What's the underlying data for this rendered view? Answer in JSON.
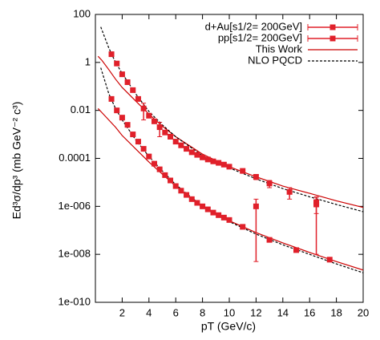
{
  "chart_data": {
    "type": "scatter",
    "xlabel": "pT (GeV/c)",
    "ylabel": "Ed³σ/dp³ (mb GeV⁻² c³)",
    "xlim": [
      0,
      20
    ],
    "ylim": [
      1e-10,
      100
    ],
    "log_y": true,
    "xticks": [
      2,
      4,
      6,
      8,
      10,
      12,
      14,
      16,
      18,
      20
    ],
    "yticks": [
      {
        "value": 1e-10,
        "label": "1e-010"
      },
      {
        "value": 1e-08,
        "label": "1e-008"
      },
      {
        "value": 1e-06,
        "label": "1e-006"
      },
      0.0001,
      0.01,
      1,
      100
    ],
    "legend": "upper right",
    "series": [
      {
        "name": "d+Au[s1/2= 200GeV]",
        "color": "#e0202a",
        "x": [
          1.2,
          1.6,
          2.0,
          2.4,
          2.8,
          3.2,
          3.6,
          4.0,
          4.4,
          4.8,
          5.2,
          5.6,
          6.0,
          6.4,
          6.8,
          7.2,
          7.6,
          8.0,
          8.4,
          8.8,
          9.2,
          9.6,
          10.0,
          11,
          12,
          13,
          14.5,
          16.5
        ],
        "values": [
          2.2,
          0.9,
          0.32,
          0.15,
          0.07,
          0.03,
          0.012,
          0.006,
          0.0035,
          0.002,
          0.0012,
          0.0008,
          0.0005,
          0.00035,
          0.00025,
          0.00018,
          0.00014,
          0.00011,
          9e-05,
          7.5e-05,
          6.5e-05,
          5.5e-05,
          4.5e-05,
          3e-05,
          1.7e-05,
          9e-06,
          4e-06,
          1.5e-06
        ],
        "errors": [
          0.3,
          0.1,
          0.04,
          0.02,
          0.01,
          0.005,
          0.008,
          0.001,
          0.0006,
          0.0012,
          0.0002,
          0.0001,
          0.0001,
          5e-05,
          4e-05,
          3e-05,
          2e-05,
          2e-05,
          1e-05,
          1e-05,
          1e-05,
          1e-05,
          8e-06,
          6e-06,
          4e-06,
          3e-06,
          2e-06,
          1e-06
        ]
      },
      {
        "name": "pp[s1/2= 200GeV]",
        "color": "#e0202a",
        "x": [
          1.2,
          1.6,
          2.0,
          2.4,
          2.8,
          3.2,
          3.6,
          4.0,
          4.4,
          4.8,
          5.2,
          5.6,
          6.0,
          6.4,
          6.8,
          7.2,
          7.6,
          8.0,
          8.4,
          8.8,
          9.2,
          9.6,
          10.0,
          11,
          12,
          13,
          15,
          16.5,
          17.5
        ],
        "values": [
          0.03,
          0.01,
          0.005,
          0.0025,
          0.001,
          0.0005,
          0.00025,
          0.00012,
          6e-05,
          3.5e-05,
          2e-05,
          1.2e-05,
          7e-06,
          4.5e-06,
          3e-06,
          2e-06,
          1.4e-06,
          1e-06,
          7.5e-07,
          5.5e-07,
          4.3e-07,
          3.4e-07,
          2.7e-07,
          1.4e-07,
          1e-06,
          4e-08,
          1.5e-08,
          1.2e-06,
          6e-09
        ],
        "errors": [
          0.004,
          0.0015,
          0.0007,
          0.0003,
          0.00012,
          6e-05,
          3e-05,
          1.5e-05,
          8e-06,
          5e-06,
          3e-06,
          2e-06,
          1e-06,
          6e-07,
          4e-07,
          3e-07,
          2e-07,
          1.5e-07,
          1e-07,
          8e-08,
          6e-08,
          5e-08,
          4e-08,
          2e-08,
          9.95e-07,
          6e-09,
          2e-09,
          1.19e-06,
          1e-09
        ]
      }
    ],
    "curves": [
      {
        "name": "This Work",
        "color": "#cc0000",
        "dashed": false,
        "lines": [
          {
            "x": [
              0.2,
              0.5,
              1,
              1.5,
              2,
              3,
              4,
              5,
              6,
              8,
              10,
              12,
              14,
              16,
              18,
              20
            ],
            "values": [
              1.8,
              1.2,
              0.5,
              0.2,
              0.09,
              0.025,
              0.007,
              0.0022,
              0.0008,
              0.00015,
              4.5e-05,
              1.7e-05,
              7e-06,
              3.5e-06,
              1.7e-06,
              9e-07
            ]
          },
          {
            "x": [
              0.2,
              0.5,
              1,
              1.5,
              2,
              3,
              4,
              5,
              6,
              8,
              10,
              12,
              14,
              16,
              18,
              20
            ],
            "values": [
              0.012,
              0.008,
              0.004,
              0.002,
              0.0009,
              0.00025,
              7e-05,
              2.2e-05,
              7e-06,
              1e-06,
              2.5e-07,
              8e-08,
              3e-08,
              1.2e-08,
              5e-09,
              2.2e-09
            ]
          }
        ]
      },
      {
        "name": "NLO PQCD",
        "color": "#000000",
        "dashed": true,
        "lines": [
          {
            "x": [
              0.4,
              1,
              1.5,
              2,
              3,
              4,
              5,
              6,
              8,
              10,
              12,
              14,
              16,
              18,
              20
            ],
            "values": [
              30,
              4,
              1,
              0.35,
              0.05,
              0.009,
              0.0025,
              0.0008,
              0.00013,
              4e-05,
              1.4e-05,
              5.5e-06,
              2.5e-06,
              1.2e-06,
              6e-07
            ]
          },
          {
            "x": [
              0.4,
              1,
              1.5,
              2,
              3,
              4,
              5,
              6,
              8,
              10,
              12,
              14,
              16,
              18,
              20
            ],
            "values": [
              0.6,
              0.05,
              0.012,
              0.004,
              0.0006,
              0.00012,
              3e-05,
              8e-06,
              1e-06,
              2.3e-07,
              7e-08,
              2.5e-08,
              1e-08,
              4e-09,
              1.7e-09
            ]
          }
        ]
      }
    ]
  }
}
